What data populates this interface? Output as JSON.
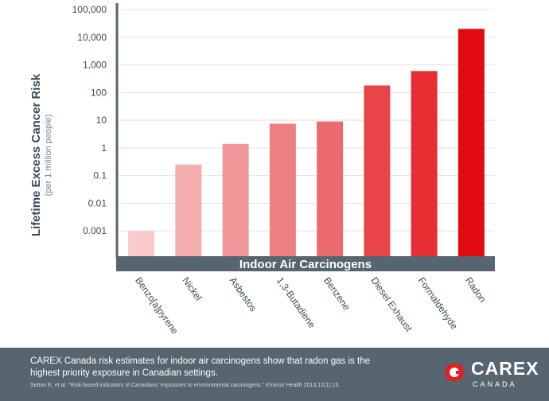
{
  "chart_data": {
    "type": "bar",
    "xlabel": "Indoor Air Carcinogens",
    "ylabel": "Lifetime Excess Cancer Risk",
    "ylabel_sub": "(per 1 million people)",
    "yscale": "log",
    "ylim": [
      0.0001,
      100000
    ],
    "yticks": [
      {
        "value": 0.001,
        "label": "0.001"
      },
      {
        "value": 0.01,
        "label": "0.01"
      },
      {
        "value": 0.1,
        "label": "0.1"
      },
      {
        "value": 1,
        "label": "1"
      },
      {
        "value": 10,
        "label": "10"
      },
      {
        "value": 100,
        "label": "100"
      },
      {
        "value": 1000,
        "label": "1,000"
      },
      {
        "value": 10000,
        "label": "10,000"
      },
      {
        "value": 100000,
        "label": "100,000"
      }
    ],
    "grid": true,
    "categories": [
      "Benzo[a]pyrene",
      "Nickel",
      "Asbestos",
      "1,3-Butadiene",
      "Benzene",
      "Diesel Exhaust",
      "Formaldehyde",
      "Radon"
    ],
    "values": [
      0.001,
      0.25,
      1.4,
      7.5,
      9,
      180,
      600,
      20000
    ],
    "colors": [
      "#f9c9cb",
      "#f4adaf",
      "#f19698",
      "#ee8083",
      "#ea6a6d",
      "#e84449",
      "#e62e33",
      "#e30b12"
    ]
  },
  "footer": {
    "text": "CAREX Canada risk estimates for indoor air carcinogens show that radon gas is the highest priority exposure in Canadian settings.",
    "citation_main": "Setton E, et al. \"Risk-based indicators of Canadians' exposures to environmental carcinogens.\"",
    "citation_journal": "Environ Health",
    "citation_ref": "2013;12(1):15."
  },
  "logo": {
    "name": "CAREX",
    "sub": "CANADA",
    "accent": "#e31e24"
  }
}
